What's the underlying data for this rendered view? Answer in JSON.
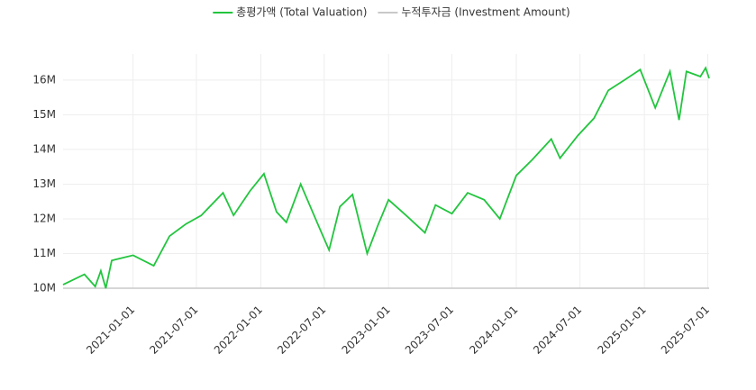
{
  "chart_data": {
    "type": "line",
    "x": [
      "2020-06-15",
      "2020-08-15",
      "2020-09-15",
      "2020-10-01",
      "2020-10-15",
      "2020-11-01",
      "2021-01-01",
      "2021-03-01",
      "2021-04-15",
      "2021-06-01",
      "2021-07-15",
      "2021-09-15",
      "2021-10-15",
      "2021-12-01",
      "2022-01-10",
      "2022-02-15",
      "2022-03-15",
      "2022-04-25",
      "2022-06-15",
      "2022-07-15",
      "2022-08-15",
      "2022-09-20",
      "2022-11-01",
      "2022-12-01",
      "2023-01-01",
      "2023-02-20",
      "2023-04-15",
      "2023-05-15",
      "2023-07-01",
      "2023-08-15",
      "2023-10-01",
      "2023-11-15",
      "2024-01-01",
      "2024-02-15",
      "2024-04-10",
      "2024-05-05",
      "2024-06-25",
      "2024-08-10",
      "2024-09-20",
      "2024-11-05",
      "2024-12-20",
      "2025-02-01",
      "2025-03-15",
      "2025-04-10",
      "2025-05-01",
      "2025-06-10",
      "2025-06-25",
      "2025-07-05"
    ],
    "series": [
      {
        "name": "총평가액 (Total Valuation)",
        "color": "#22c53e",
        "values": [
          10100000,
          10400000,
          10050000,
          10500000,
          10000000,
          10800000,
          10950000,
          10650000,
          11500000,
          11850000,
          12100000,
          12750000,
          12100000,
          12800000,
          13300000,
          12200000,
          11900000,
          13000000,
          11800000,
          11100000,
          12350000,
          12700000,
          11000000,
          11800000,
          12550000,
          12100000,
          11600000,
          12400000,
          12150000,
          12750000,
          12550000,
          12000000,
          13250000,
          13700000,
          14300000,
          13750000,
          14400000,
          14900000,
          15700000,
          16000000,
          16300000,
          15200000,
          16250000,
          14850000,
          16250000,
          16100000,
          16350000,
          16050000
        ]
      },
      {
        "name": "누적투자금 (Investment Amount)",
        "color": "#c8c8c8",
        "values": [
          10000000,
          10000000,
          10000000,
          10000000,
          10000000,
          10000000,
          10000000,
          10000000,
          10000000,
          10000000,
          10000000,
          10000000,
          10000000,
          10000000,
          10000000,
          10000000,
          10000000,
          10000000,
          10000000,
          10000000,
          10000000,
          10000000,
          10000000,
          10000000,
          10000000,
          10000000,
          10000000,
          10000000,
          10000000,
          10000000,
          10000000,
          10000000,
          10000000,
          10000000,
          10000000,
          10000000,
          10000000,
          10000000,
          10000000,
          10000000,
          10000000,
          10000000,
          10000000,
          10000000,
          10000000,
          10000000,
          10000000,
          10000000
        ]
      }
    ],
    "xlim": [
      "2020-06-15",
      "2025-07-05"
    ],
    "xticks": [
      "2021-01-01",
      "2021-07-01",
      "2022-01-01",
      "2022-07-01",
      "2023-01-01",
      "2023-07-01",
      "2024-01-01",
      "2024-07-01",
      "2025-01-01",
      "2025-07-01"
    ],
    "ylim": [
      10000000,
      16750000
    ],
    "yticks": [
      {
        "value": 10000000,
        "label": "10M"
      },
      {
        "value": 11000000,
        "label": "11M"
      },
      {
        "value": 12000000,
        "label": "12M"
      },
      {
        "value": 13000000,
        "label": "13M"
      },
      {
        "value": 14000000,
        "label": "14M"
      },
      {
        "value": 15000000,
        "label": "15M"
      },
      {
        "value": 16000000,
        "label": "16M"
      }
    ],
    "grid": true,
    "legend": "top"
  }
}
